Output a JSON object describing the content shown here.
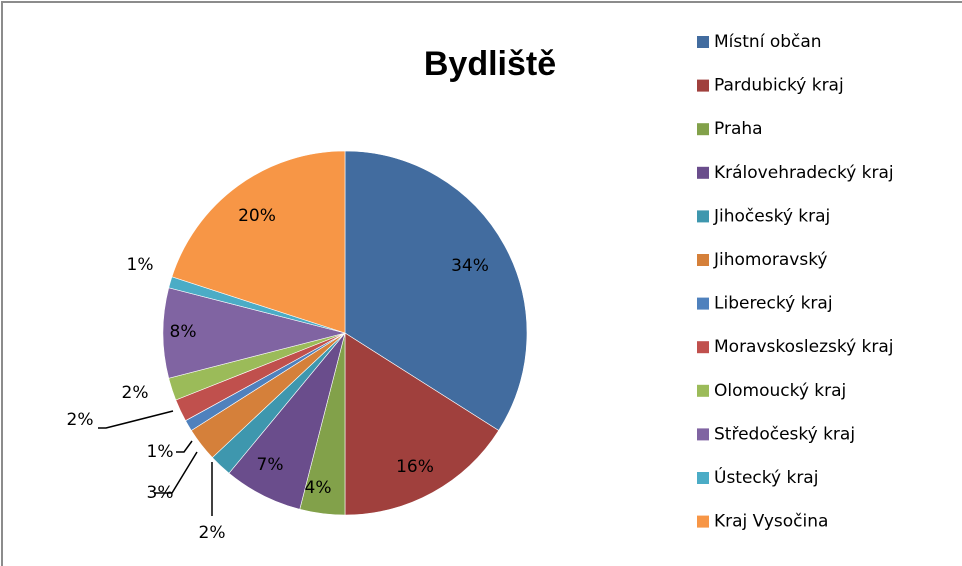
{
  "chart_data": {
    "type": "pie",
    "title": "Bydliště",
    "categories": [
      "Místní občan",
      "Pardubický kraj",
      "Praha",
      "Královehradecký kraj",
      "Jihočeský kraj",
      "Jihomoravský",
      "Liberecký kraj",
      "Moravskoslezský kraj",
      "Olomoucký kraj",
      "Středočeský kraj",
      "Ústecký kraj",
      "Kraj Vysočina"
    ],
    "values": [
      34,
      16,
      4,
      7,
      2,
      3,
      1,
      2,
      2,
      8,
      1,
      20
    ],
    "value_labels": [
      "34%",
      "16%",
      "4%",
      "7%",
      "2%",
      "3%",
      "1%",
      "2%",
      "2%",
      "8%",
      "1%",
      "20%"
    ],
    "colors": [
      "#426C9F",
      "#A0403D",
      "#82A14A",
      "#6A4D8C",
      "#3E97AE",
      "#D5803A",
      "#4F81BD",
      "#C0504D",
      "#9BBB59",
      "#8064A2",
      "#4BACC6",
      "#F79646"
    ],
    "legend": "right"
  }
}
